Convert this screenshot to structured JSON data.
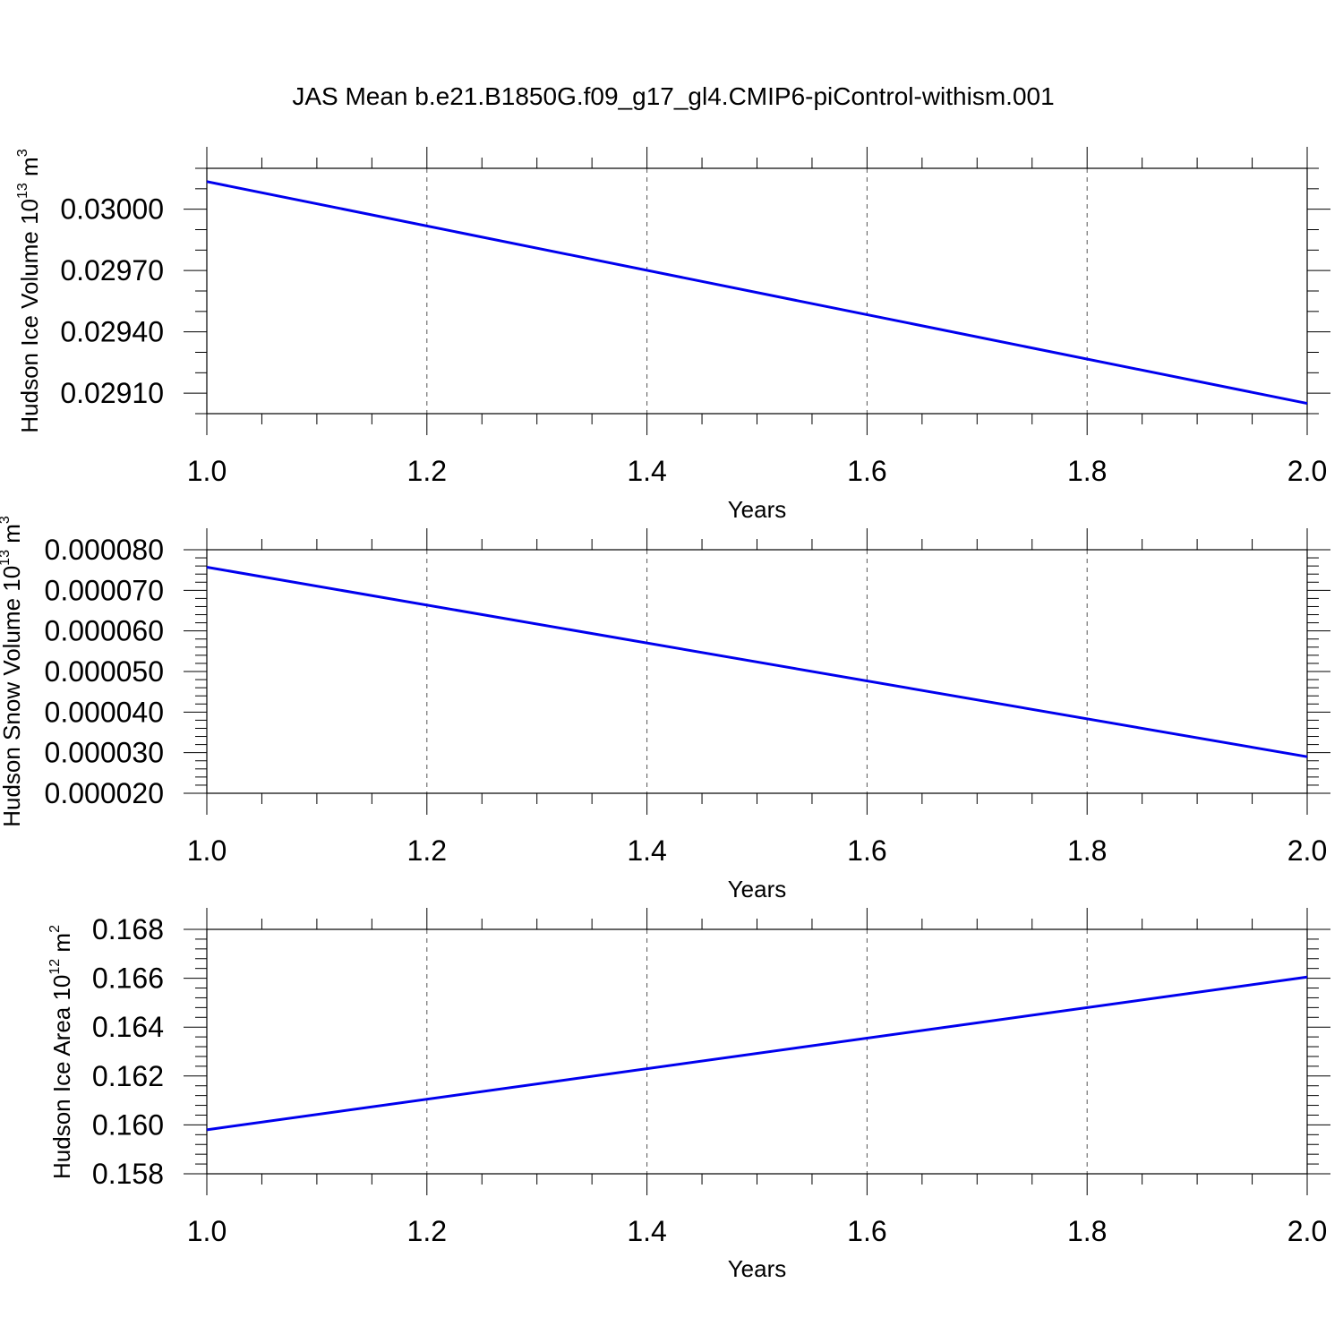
{
  "title": "JAS Mean b.e21.B1850G.f09_g17_gl4.CMIP6-piControl-withism.001",
  "chart_data": [
    {
      "type": "line",
      "ylabel": {
        "base": "Hudson Ice Volume 10",
        "exp": "13",
        "unit": " m",
        "unit_exp": "3"
      },
      "xlabel": "Years",
      "xlim": [
        1.0,
        2.0
      ],
      "ylim": [
        0.029,
        0.0302
      ],
      "xticks": [
        1.0,
        1.2,
        1.4,
        1.6,
        1.8,
        2.0
      ],
      "xtick_labels": [
        "1.0",
        "1.2",
        "1.4",
        "1.6",
        "1.8",
        "2.0"
      ],
      "xminor": 0.05,
      "yticks": [
        0.0291,
        0.0294,
        0.0297,
        0.03
      ],
      "ytick_labels": [
        "0.02910",
        "0.02940",
        "0.02970",
        "0.03000"
      ],
      "yminor": 0.0001,
      "grid": "vertical-dashed",
      "color": "#0000ee",
      "x": [
        1.0,
        2.0
      ],
      "y": [
        0.030135,
        0.02905
      ]
    },
    {
      "type": "line",
      "ylabel": {
        "base": "Hudson Snow Volume 10",
        "exp": "13",
        "unit": " m",
        "unit_exp": "3"
      },
      "xlabel": "Years",
      "xlim": [
        1.0,
        2.0
      ],
      "ylim": [
        2e-05,
        8e-05
      ],
      "xticks": [
        1.0,
        1.2,
        1.4,
        1.6,
        1.8,
        2.0
      ],
      "xtick_labels": [
        "1.0",
        "1.2",
        "1.4",
        "1.6",
        "1.8",
        "2.0"
      ],
      "xminor": 0.05,
      "yticks": [
        2e-05,
        3e-05,
        4e-05,
        5e-05,
        6e-05,
        7e-05,
        8e-05
      ],
      "ytick_labels": [
        "0.000020",
        "0.000030",
        "0.000040",
        "0.000050",
        "0.000060",
        "0.000070",
        "0.000080"
      ],
      "yminor": 2e-06,
      "grid": "vertical-dashed",
      "color": "#0000ee",
      "x": [
        1.0,
        2.0
      ],
      "y": [
        7.57e-05,
        2.9e-05
      ]
    },
    {
      "type": "line",
      "ylabel": {
        "base": "Hudson Ice Area 10",
        "exp": "12",
        "unit": " m",
        "unit_exp": "2"
      },
      "xlabel": "Years",
      "xlim": [
        1.0,
        2.0
      ],
      "ylim": [
        0.158,
        0.168
      ],
      "xticks": [
        1.0,
        1.2,
        1.4,
        1.6,
        1.8,
        2.0
      ],
      "xtick_labels": [
        "1.0",
        "1.2",
        "1.4",
        "1.6",
        "1.8",
        "2.0"
      ],
      "xminor": 0.05,
      "yticks": [
        0.158,
        0.16,
        0.162,
        0.164,
        0.166,
        0.168
      ],
      "ytick_labels": [
        "0.158",
        "0.160",
        "0.162",
        "0.164",
        "0.166",
        "0.168"
      ],
      "yminor": 0.0004,
      "grid": "vertical-dashed",
      "color": "#0000ee",
      "x": [
        1.0,
        2.0
      ],
      "y": [
        0.1598,
        0.16605
      ]
    }
  ]
}
